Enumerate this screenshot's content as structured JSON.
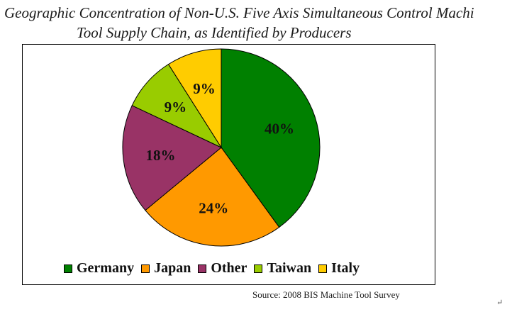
{
  "chart_data": {
    "type": "pie",
    "title_lines": [
      "Geographic Concentration of Non-U.S. Five Axis Simultaneous Control Machi",
      "Tool Supply Chain, as Identified by Producers"
    ],
    "slices": [
      {
        "name": "Germany",
        "value": 40,
        "label": "40%",
        "color": "#008000"
      },
      {
        "name": "Japan",
        "value": 24,
        "label": "24%",
        "color": "#FF9900"
      },
      {
        "name": "Other",
        "value": 18,
        "label": "18%",
        "color": "#993366"
      },
      {
        "name": "Taiwan",
        "value": 9,
        "label": "9%",
        "color": "#99CC00"
      },
      {
        "name": "Italy",
        "value": 9,
        "label": "9%",
        "color": "#FFCC00"
      }
    ],
    "start_angle_deg": 0,
    "direction": "clockwise",
    "legend_position": "bottom",
    "source": "Source:  2008 BIS Machine Tool Survey"
  },
  "return_mark": "↵"
}
